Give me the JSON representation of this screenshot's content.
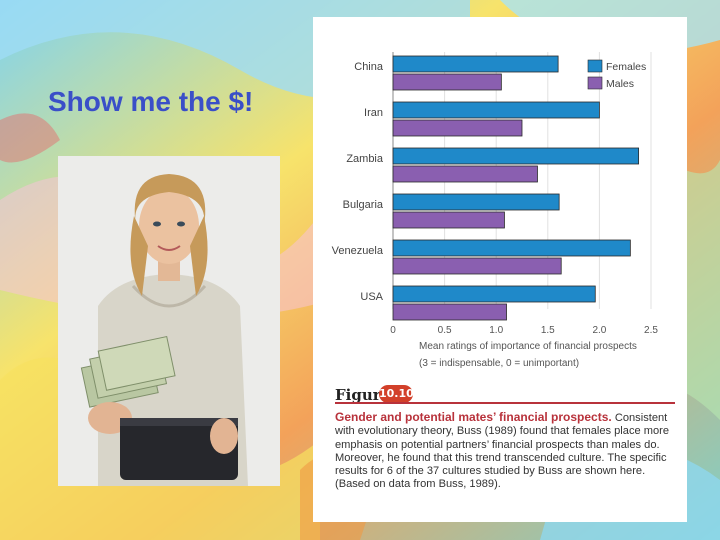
{
  "slide": {
    "title": "Show me the $!"
  },
  "photo": {
    "description_icon": "woman-holding-money-photo"
  },
  "colors": {
    "females": "#1f89c9",
    "males": "#8a5fb0",
    "title": "#3a4fc8",
    "figure_red": "#b8323b"
  },
  "figure": {
    "label_word": "Figure",
    "label_num": "10.10",
    "caption_title": "Gender and potential mates’ financial prospects.",
    "caption_body": " Consistent with evolutionary theory, Buss (1989) found that females place more emphasis on potential partners’ financial prospects than males do. Moreover, he found that this trend transcended culture. The specific results for 6 of the 37 cultures studied by Buss are shown here. (Based on data from Buss, 1989)."
  },
  "chart_data": {
    "type": "bar",
    "orientation": "horizontal",
    "categories": [
      "China",
      "Iran",
      "Zambia",
      "Bulgaria",
      "Venezuela",
      "USA"
    ],
    "series": [
      {
        "name": "Females",
        "values": [
          1.6,
          2.0,
          2.38,
          1.61,
          2.3,
          1.96
        ]
      },
      {
        "name": "Males",
        "values": [
          1.05,
          1.25,
          1.4,
          1.08,
          1.63,
          1.1
        ]
      }
    ],
    "xlim": [
      0,
      2.5
    ],
    "ticks": [
      "0",
      "0.5",
      "1.0",
      "1.5",
      "2.0",
      "2.5"
    ],
    "xlabel_line1": "Mean ratings of importance of financial prospects",
    "xlabel_line2": "(3 = indispensable, 0 = unimportant)",
    "legend_position": "top-right",
    "grid": true
  }
}
